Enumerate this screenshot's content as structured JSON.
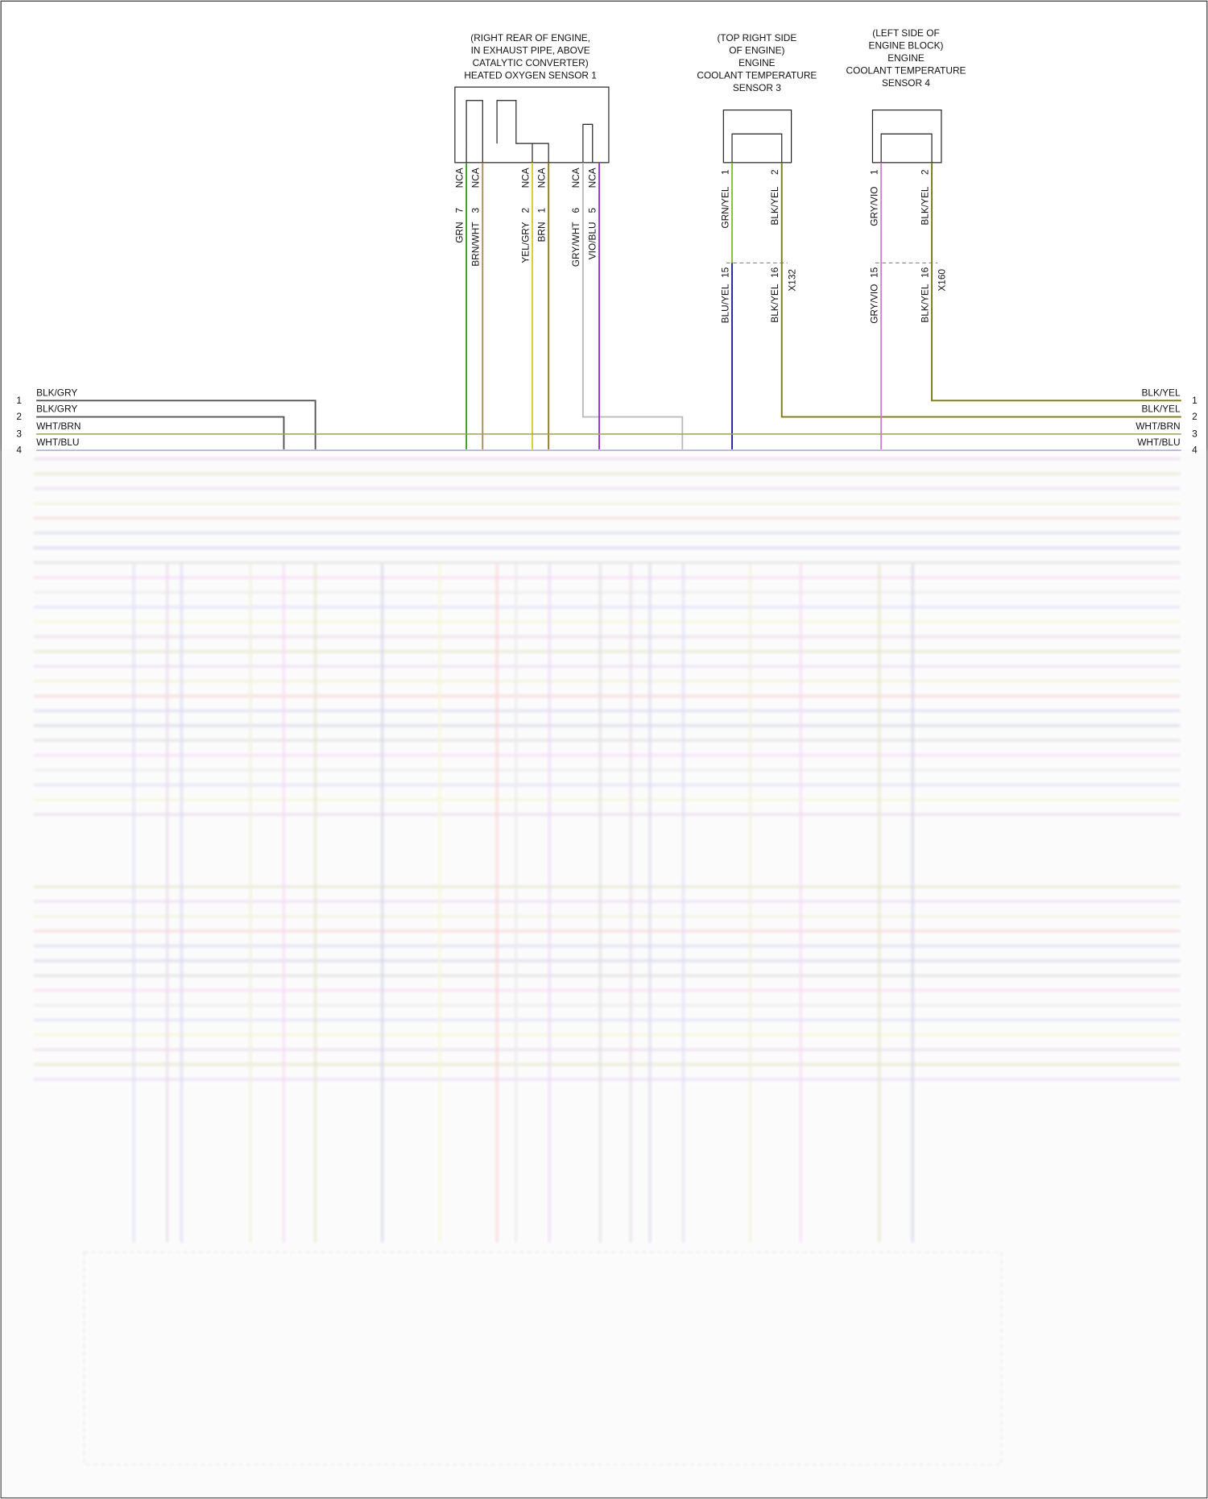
{
  "sensors": [
    {
      "label": [
        "(RIGHT REAR OF ENGINE,",
        "IN EXHAUST PIPE, ABOVE",
        "CATALYTIC CONVERTER)",
        "HEATED OXYGEN SENSOR 1"
      ],
      "pins": [
        {
          "wire": "GRN",
          "pin": "7",
          "connector": "NCA"
        },
        {
          "wire": "BRN/WHT",
          "pin": "3",
          "connector": "NCA"
        },
        {
          "wire": "YEL/GRY",
          "pin": "2",
          "connector": "NCA"
        },
        {
          "wire": "BRN",
          "pin": "1",
          "connector": "NCA"
        },
        {
          "wire": "GRY/WHT",
          "pin": "6",
          "connector": "NCA"
        },
        {
          "wire": "VIO/BLU",
          "pin": "5",
          "connector": "NCA"
        }
      ]
    },
    {
      "label": [
        "(TOP RIGHT SIDE",
        "OF ENGINE)",
        "ENGINE",
        "COOLANT TEMPERATURE",
        "SENSOR 3"
      ],
      "pins": [
        {
          "wire": "GRN/YEL",
          "pin": "1"
        },
        {
          "wire": "BLK/YEL",
          "pin": "2"
        }
      ]
    },
    {
      "label": [
        "(LEFT SIDE OF",
        "ENGINE BLOCK)",
        "ENGINE",
        "COOLANT TEMPERATURE",
        "SENSOR 4"
      ],
      "pins": [
        {
          "wire": "GRY/VIO",
          "pin": "1"
        },
        {
          "wire": "BLK/YEL",
          "pin": "2"
        }
      ]
    }
  ],
  "connectors": [
    {
      "name": "X132",
      "pins": [
        {
          "pin": "15",
          "wire": "BLU/YEL"
        },
        {
          "pin": "16",
          "wire": "BLK/YEL"
        }
      ]
    },
    {
      "name": "X160",
      "pins": [
        {
          "pin": "15",
          "wire": "GRY/VIO"
        },
        {
          "pin": "16",
          "wire": "BLK/YEL"
        }
      ]
    }
  ],
  "left_bus": [
    {
      "pin": "1",
      "wire": "BLK/GRY"
    },
    {
      "pin": "2",
      "wire": "BLK/GRY"
    },
    {
      "pin": "3",
      "wire": "WHT/BRN"
    },
    {
      "pin": "4",
      "wire": "WHT/BLU"
    }
  ],
  "right_bus": [
    {
      "pin": "1",
      "wire": "BLK/YEL"
    },
    {
      "pin": "2",
      "wire": "BLK/YEL"
    },
    {
      "pin": "3",
      "wire": "WHT/BRN"
    },
    {
      "pin": "4",
      "wire": "WHT/BLU"
    }
  ]
}
